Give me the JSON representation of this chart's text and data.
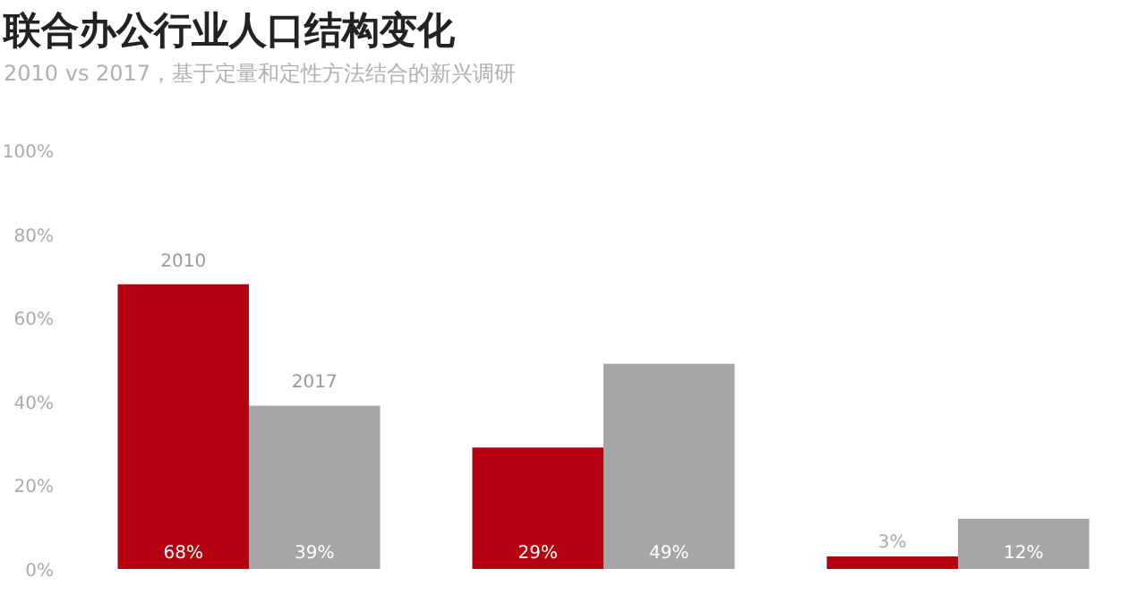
{
  "chart_data": {
    "type": "bar",
    "title": "联合办公行业人口结构变化",
    "subtitle": "2010 vs 2017，基于定量和定性方法结合的新兴调研",
    "categories": [
      null,
      null,
      null
    ],
    "series": [
      {
        "name": "2010",
        "color": "#b5000f",
        "values": [
          68,
          29,
          3
        ],
        "value_labels": [
          "68%",
          "29%",
          "3%"
        ]
      },
      {
        "name": "2017",
        "color": "#a6a6a6",
        "values": [
          39,
          49,
          12
        ],
        "value_labels": [
          "39%",
          "49%",
          "12%"
        ]
      }
    ],
    "ylim": [
      0,
      100
    ],
    "yticks": [
      {
        "value": 0,
        "label": "0%"
      },
      {
        "value": 20,
        "label": "20%"
      },
      {
        "value": 40,
        "label": "40%"
      },
      {
        "value": 60,
        "label": "60%"
      },
      {
        "value": 80,
        "label": "80%"
      },
      {
        "value": 100,
        "label": "100%"
      }
    ]
  }
}
